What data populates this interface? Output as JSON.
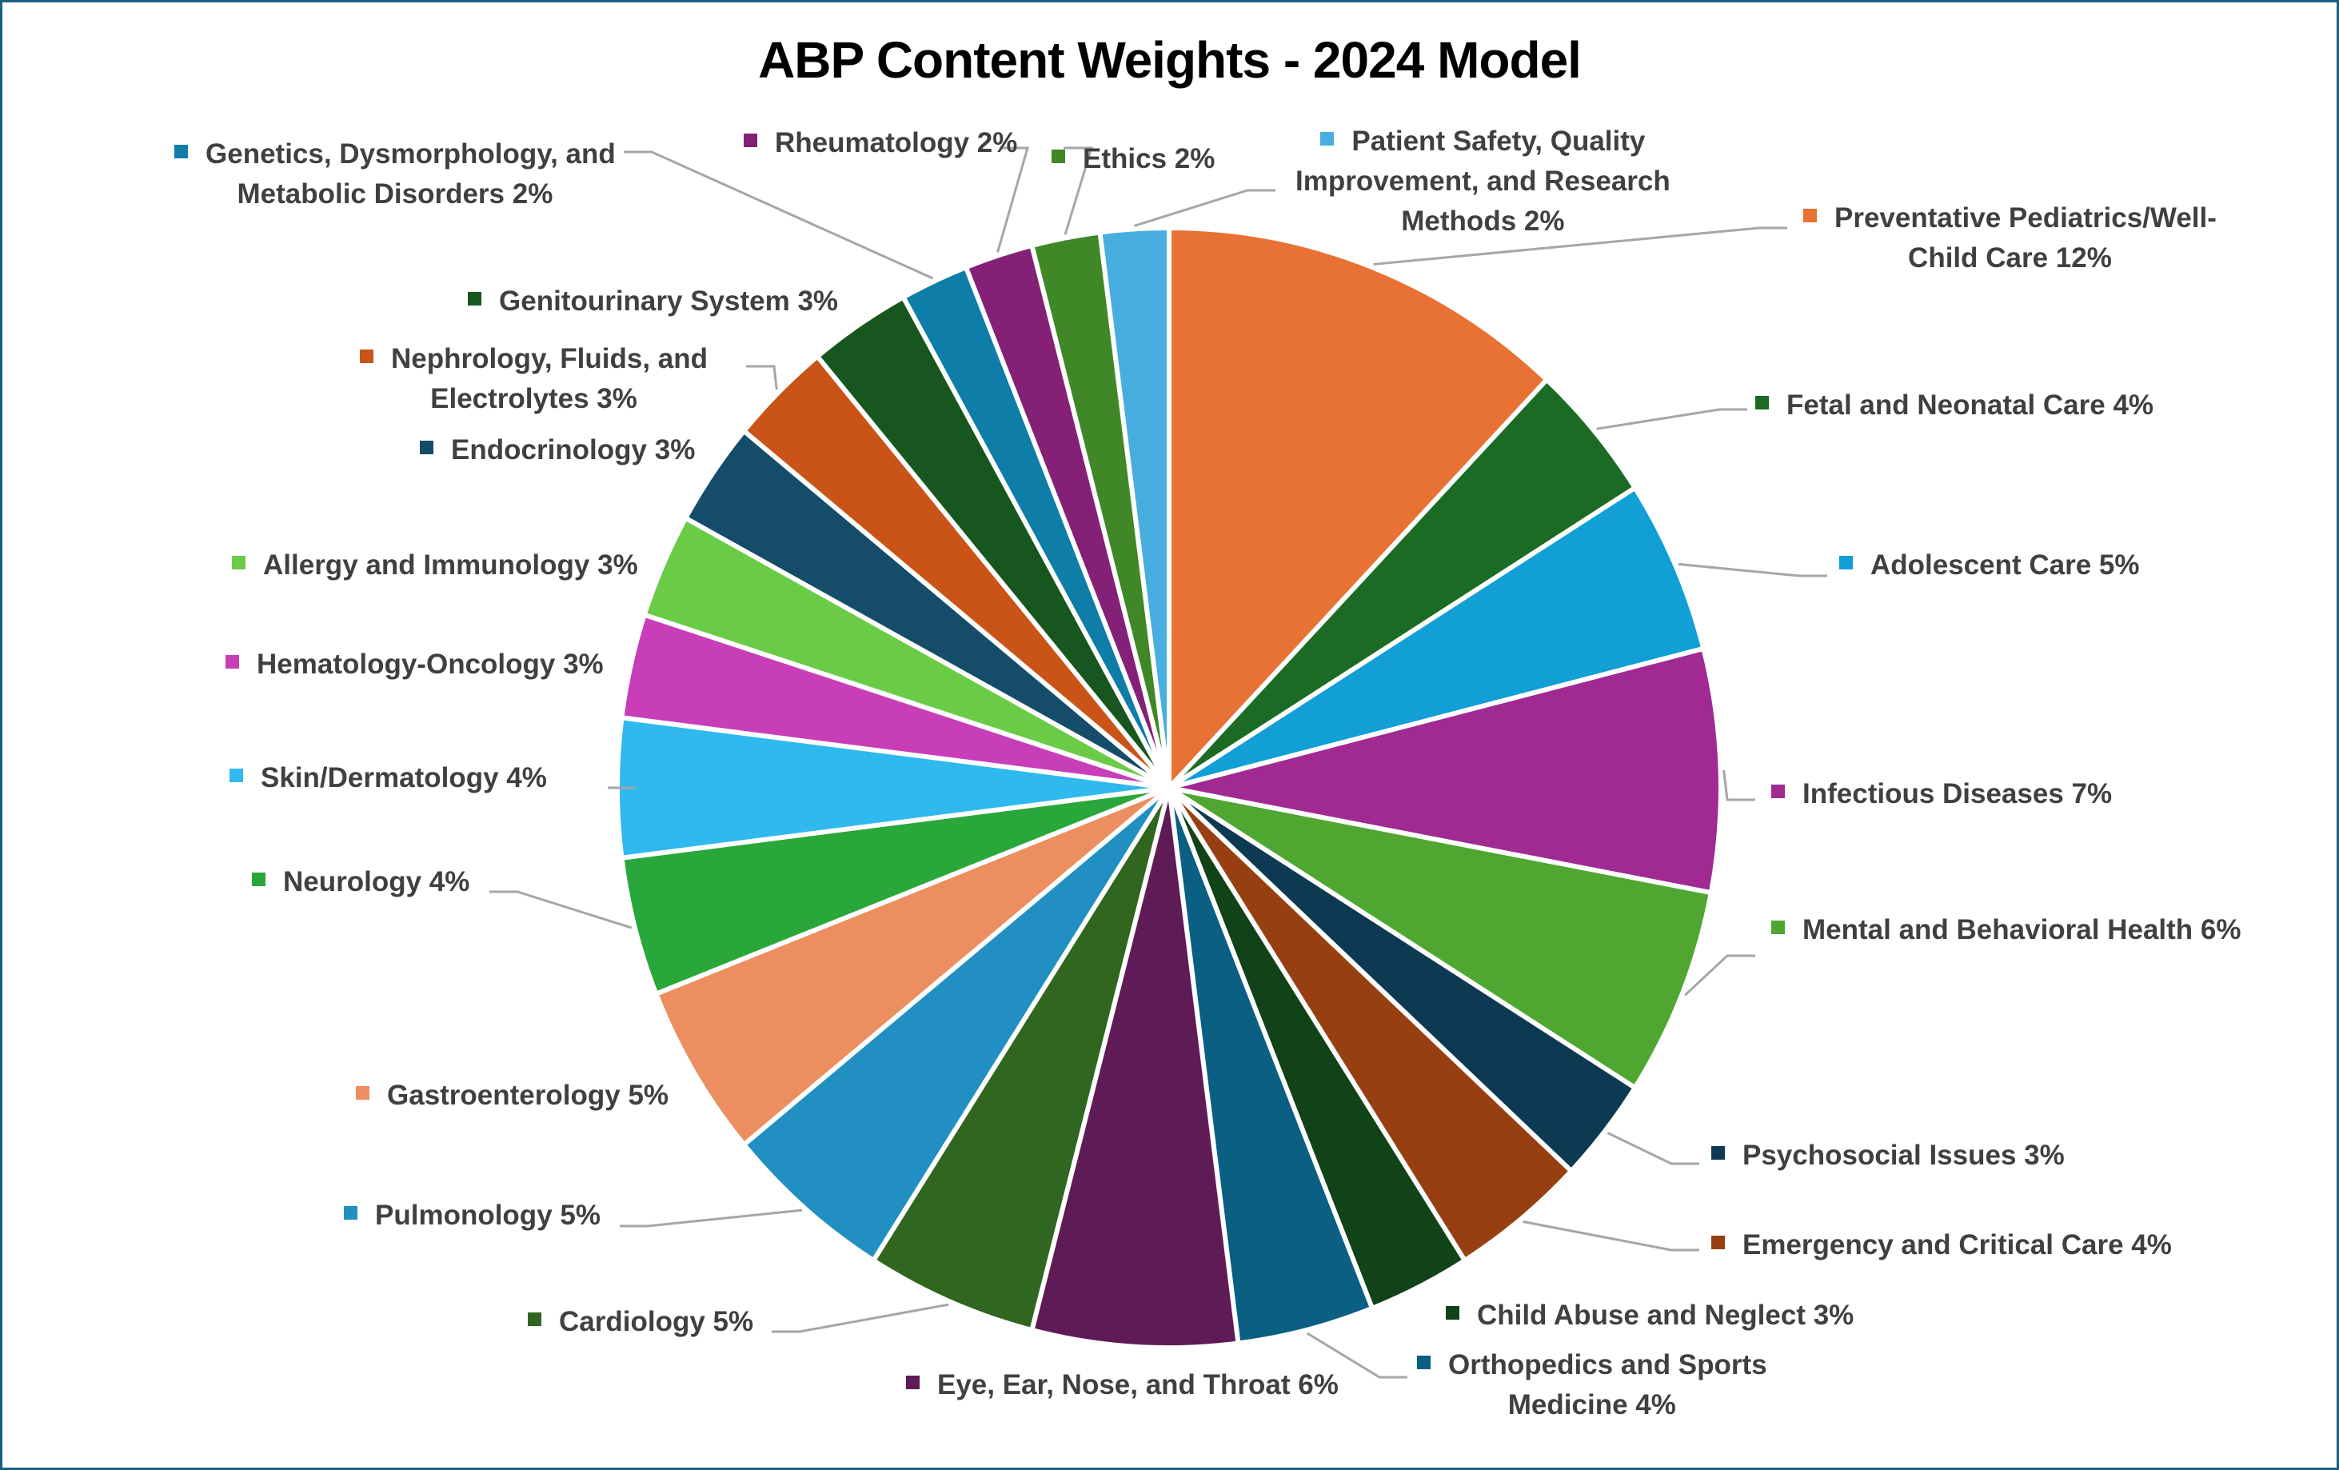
{
  "chart_data": {
    "type": "pie",
    "title": "ABP Content Weights - 2024 Model",
    "start_angle": "12 o'clock, clockwise",
    "legend_position": "data labels with leader lines (no separate legend)",
    "slices": [
      {
        "label": "Preventative Pediatrics/Well-Child Care",
        "value": 12,
        "color": "#E87234"
      },
      {
        "label": "Fetal and Neonatal Care",
        "value": 4,
        "color": "#1C6B24"
      },
      {
        "label": "Adolescent Care",
        "value": 5,
        "color": "#119FD6"
      },
      {
        "label": "Infectious Diseases",
        "value": 7,
        "color": "#A02A92"
      },
      {
        "label": "Mental and Behavioral Health",
        "value": 6,
        "color": "#4FA731"
      },
      {
        "label": "Psychosocial Issues",
        "value": 3,
        "color": "#0D3A52"
      },
      {
        "label": "Emergency and Critical Care",
        "value": 4,
        "color": "#983F11"
      },
      {
        "label": "Child Abuse and Neglect",
        "value": 3,
        "color": "#114218"
      },
      {
        "label": "Orthopedics and Sports Medicine",
        "value": 4,
        "color": "#0A5F82"
      },
      {
        "label": "Eye, Ear, Nose, and Throat",
        "value": 6,
        "color": "#5F1B56"
      },
      {
        "label": "Cardiology",
        "value": 5,
        "color": "#30661F"
      },
      {
        "label": "Pulmonology",
        "value": 5,
        "color": "#218FC2"
      },
      {
        "label": "Gastroenterology",
        "value": 5,
        "color": "#EC8E5F"
      },
      {
        "label": "Neurology",
        "value": 4,
        "color": "#2AA73A"
      },
      {
        "label": "Skin/Dermatology",
        "value": 4,
        "color": "#2FB9EE"
      },
      {
        "label": "Hematology-Oncology",
        "value": 3,
        "color": "#C83EB9"
      },
      {
        "label": "Allergy and Immunology",
        "value": 3,
        "color": "#6ACB47"
      },
      {
        "label": "Endocrinology",
        "value": 3,
        "color": "#144C6A"
      },
      {
        "label": "Nephrology, Fluids, and Electrolytes",
        "value": 3,
        "color": "#CA5417"
      },
      {
        "label": "Genitourinary System",
        "value": 3,
        "color": "#17571F"
      },
      {
        "label": "Genetics, Dysmorphology, and Metabolic Disorders",
        "value": 2,
        "color": "#0E7DA8"
      },
      {
        "label": "Rheumatology",
        "value": 2,
        "color": "#842177"
      },
      {
        "label": "Ethics",
        "value": 2,
        "color": "#408727"
      },
      {
        "label": "Patient Safety, Quality Improvement, and Research Methods",
        "value": 2,
        "color": "#48AEDF"
      }
    ],
    "unit": "%"
  },
  "labels": [
    {
      "lines": [
        "Preventative Pediatrics/Well-",
        "Child Care 12%"
      ]
    },
    {
      "lines": [
        "Fetal and Neonatal Care 4%"
      ]
    },
    {
      "lines": [
        "Adolescent Care 5%"
      ]
    },
    {
      "lines": [
        "Infectious Diseases 7%"
      ]
    },
    {
      "lines": [
        "Mental and Behavioral Health 6%"
      ]
    },
    {
      "lines": [
        "Psychosocial Issues 3%"
      ]
    },
    {
      "lines": [
        "Emergency and Critical Care 4%"
      ]
    },
    {
      "lines": [
        "Child Abuse and Neglect 3%"
      ]
    },
    {
      "lines": [
        "Orthopedics and Sports",
        "Medicine 4%"
      ]
    },
    {
      "lines": [
        "Eye, Ear, Nose, and Throat 6%"
      ]
    },
    {
      "lines": [
        "Cardiology 5%"
      ]
    },
    {
      "lines": [
        "Pulmonology 5%"
      ]
    },
    {
      "lines": [
        "Gastroenterology 5%"
      ]
    },
    {
      "lines": [
        "Neurology 4%"
      ]
    },
    {
      "lines": [
        "Skin/Dermatology 4%"
      ]
    },
    {
      "lines": [
        "Hematology-Oncology 3%"
      ]
    },
    {
      "lines": [
        "Allergy and Immunology 3%"
      ]
    },
    {
      "lines": [
        "Endocrinology 3%"
      ]
    },
    {
      "lines": [
        "Nephrology, Fluids, and",
        "Electrolytes 3%"
      ]
    },
    {
      "lines": [
        "Genitourinary System 3%"
      ]
    },
    {
      "lines": [
        "Genetics, Dysmorphology, and",
        "Metabolic Disorders 2%"
      ]
    },
    {
      "lines": [
        "Rheumatology 2%"
      ]
    },
    {
      "lines": [
        "Ethics 2%"
      ]
    },
    {
      "lines": [
        "Patient Safety, Quality",
        "Improvement, and Research",
        "Methods 2%"
      ]
    }
  ],
  "colors": {
    "frame_border": "#1D5F80",
    "label_text": "#404040",
    "leader_line": "#A6A6A6",
    "title_text": "#000000"
  }
}
